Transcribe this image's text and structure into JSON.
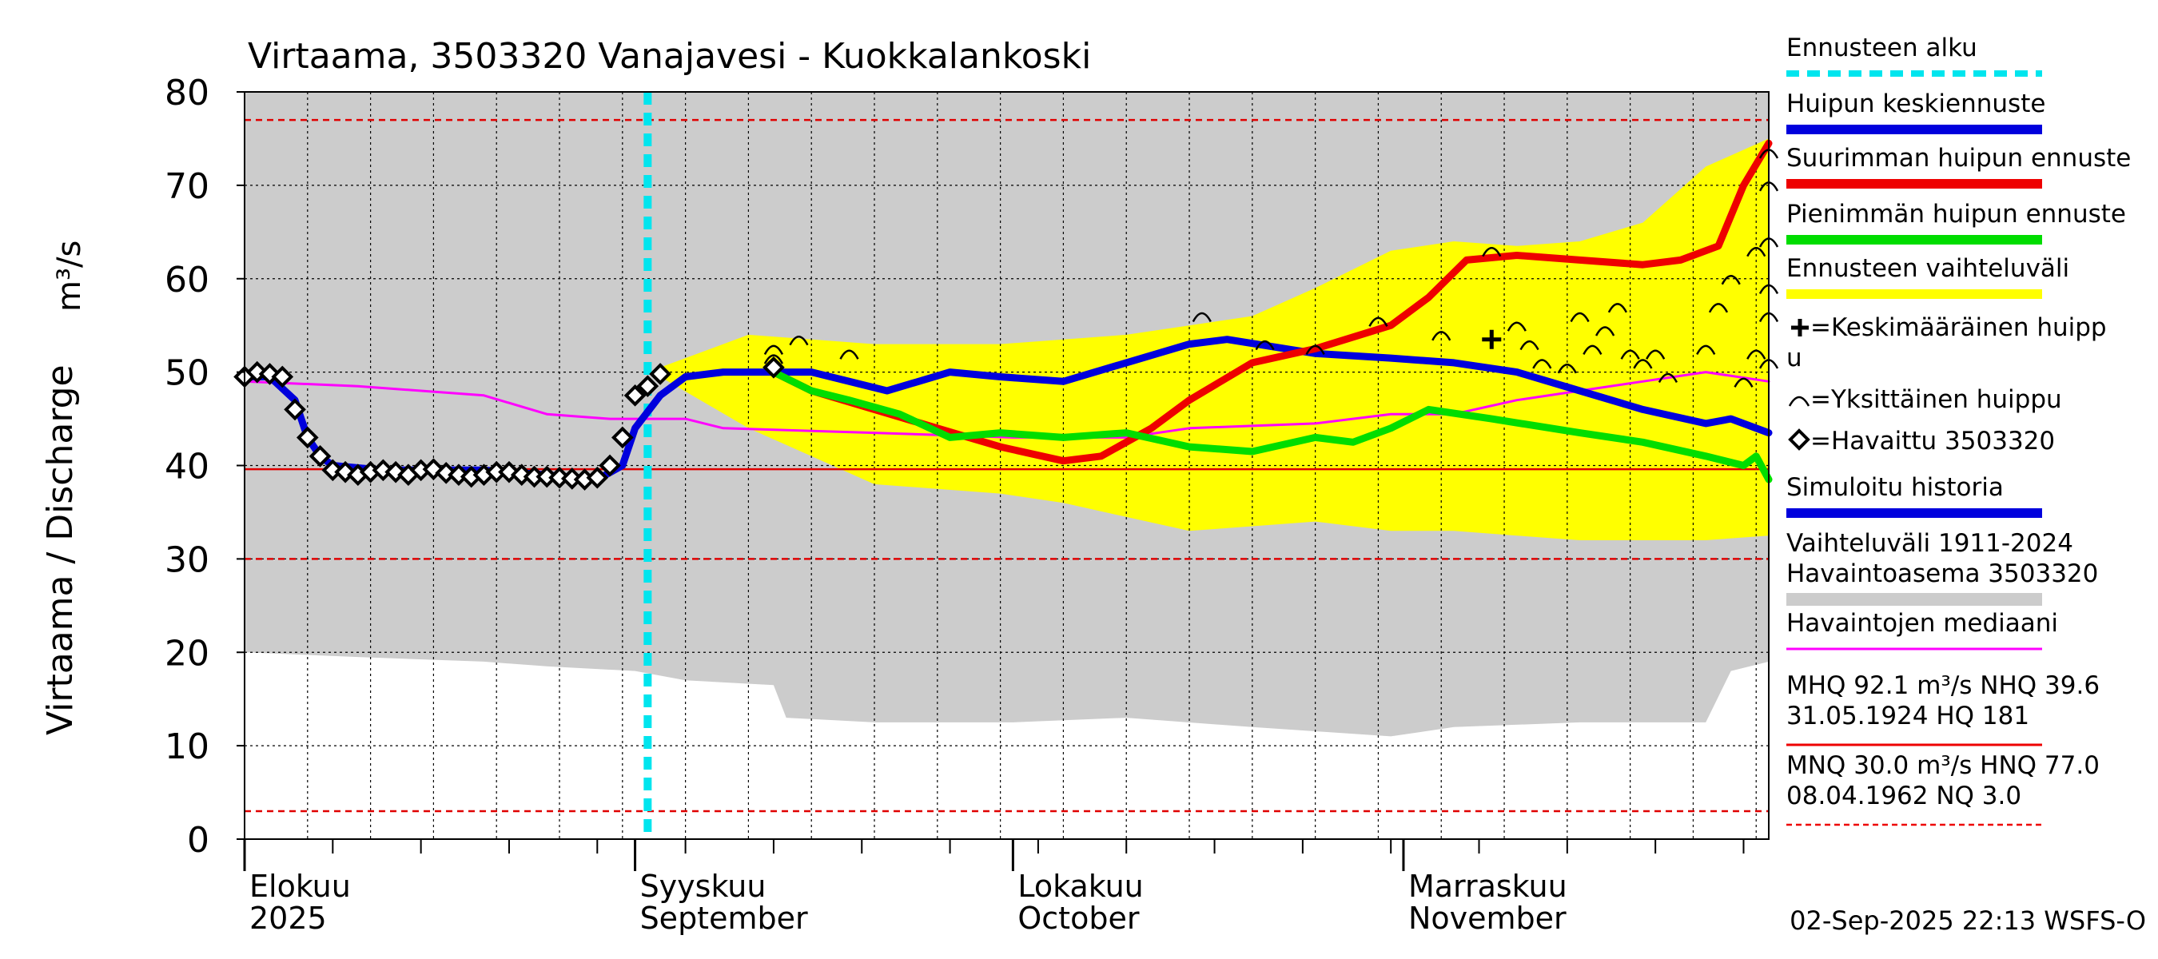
{
  "chart_data": {
    "type": "line",
    "title": "Virtaama, 3503320 Vanajavesi - Kuokkalankoski",
    "ylabel_left": "Virtaama / Discharge",
    "ylabel_unit": "m³/s",
    "ylim": [
      0,
      80
    ],
    "yticks": [
      0,
      10,
      20,
      30,
      40,
      50,
      60,
      70,
      80
    ],
    "xlim": [
      "2025-08-01",
      "2025-11-30"
    ],
    "month_labels": [
      {
        "date": "2025-08-01",
        "fi": "Elokuu",
        "en": "2025"
      },
      {
        "date": "2025-09-01",
        "fi": "Syyskuu",
        "en": "September"
      },
      {
        "date": "2025-10-01",
        "fi": "Lokakuu",
        "en": "October"
      },
      {
        "date": "2025-11-01",
        "fi": "Marraskuu",
        "en": "November"
      }
    ],
    "forecast_start": "2025-09-02",
    "reference_lines": [
      {
        "name": "HNQ",
        "value": 77.0,
        "style": "dashed",
        "color": "#e00000"
      },
      {
        "name": "NHQ",
        "value": 39.6,
        "style": "solid",
        "color": "#e00000"
      },
      {
        "name": "MNQ",
        "value": 30.0,
        "style": "dashed",
        "color": "#e00000"
      },
      {
        "name": "NQ",
        "value": 3.0,
        "style": "dashed",
        "color": "#e00000"
      }
    ],
    "historical_range": {
      "upper": 80,
      "lower": [
        [
          "2025-08-01",
          20
        ],
        [
          "2025-08-10",
          19.5
        ],
        [
          "2025-08-20",
          19
        ],
        [
          "2025-08-25",
          18.5
        ],
        [
          "2025-09-01",
          18
        ],
        [
          "2025-09-05",
          17
        ],
        [
          "2025-09-12",
          16.5
        ],
        [
          "2025-09-13",
          13
        ],
        [
          "2025-09-20",
          12.5
        ],
        [
          "2025-10-01",
          12.5
        ],
        [
          "2025-10-10",
          13
        ],
        [
          "2025-10-20",
          12
        ],
        [
          "2025-10-31",
          11
        ],
        [
          "2025-11-05",
          12
        ],
        [
          "2025-11-15",
          12.5
        ],
        [
          "2025-11-25",
          12.5
        ],
        [
          "2025-11-27",
          18
        ],
        [
          "2025-11-30",
          19
        ]
      ]
    },
    "forecast_range": {
      "upper": [
        [
          "2025-09-03",
          50.5
        ],
        [
          "2025-09-10",
          54
        ],
        [
          "2025-09-20",
          53
        ],
        [
          "2025-09-30",
          53
        ],
        [
          "2025-10-10",
          54
        ],
        [
          "2025-10-20",
          56
        ],
        [
          "2025-10-25",
          59
        ],
        [
          "2025-10-31",
          63
        ],
        [
          "2025-11-05",
          64
        ],
        [
          "2025-11-10",
          63.5
        ],
        [
          "2025-11-15",
          64
        ],
        [
          "2025-11-20",
          66
        ],
        [
          "2025-11-25",
          72
        ],
        [
          "2025-11-30",
          75
        ]
      ],
      "lower": [
        [
          "2025-09-03",
          49.5
        ],
        [
          "2025-09-10",
          44
        ],
        [
          "2025-09-15",
          41
        ],
        [
          "2025-09-20",
          38
        ],
        [
          "2025-09-25",
          37.5
        ],
        [
          "2025-09-30",
          37
        ],
        [
          "2025-10-05",
          36
        ],
        [
          "2025-10-15",
          33
        ],
        [
          "2025-10-20",
          33.5
        ],
        [
          "2025-10-25",
          34
        ],
        [
          "2025-10-31",
          33
        ],
        [
          "2025-11-05",
          33
        ],
        [
          "2025-11-10",
          32.5
        ],
        [
          "2025-11-15",
          32
        ],
        [
          "2025-11-20",
          32
        ],
        [
          "2025-11-25",
          32
        ],
        [
          "2025-11-30",
          32.5
        ]
      ]
    },
    "series": [
      {
        "name": "Havaintojen mediaani",
        "color": "#ff00ff",
        "width": 3,
        "points": [
          [
            "2025-08-01",
            49
          ],
          [
            "2025-08-10",
            48.5
          ],
          [
            "2025-08-20",
            47.5
          ],
          [
            "2025-08-25",
            45.5
          ],
          [
            "2025-08-30",
            45
          ],
          [
            "2025-09-05",
            45
          ],
          [
            "2025-09-08",
            44
          ],
          [
            "2025-09-20",
            43.5
          ],
          [
            "2025-10-01",
            43
          ],
          [
            "2025-10-10",
            43
          ],
          [
            "2025-10-15",
            44
          ],
          [
            "2025-10-25",
            44.5
          ],
          [
            "2025-10-31",
            45.5
          ],
          [
            "2025-11-05",
            45.5
          ],
          [
            "2025-11-10",
            47
          ],
          [
            "2025-11-15",
            48
          ],
          [
            "2025-11-20",
            49
          ],
          [
            "2025-11-25",
            50
          ],
          [
            "2025-11-30",
            49
          ]
        ]
      },
      {
        "name": "Simuloitu historia",
        "color": "#0000dd",
        "width": 9,
        "points": [
          [
            "2025-08-01",
            49.5
          ],
          [
            "2025-08-03",
            49.5
          ],
          [
            "2025-08-05",
            47
          ],
          [
            "2025-08-06",
            43
          ],
          [
            "2025-08-07",
            41
          ],
          [
            "2025-08-08",
            40
          ],
          [
            "2025-08-12",
            39.5
          ],
          [
            "2025-08-20",
            39.5
          ],
          [
            "2025-08-25",
            39
          ],
          [
            "2025-08-29",
            38.5
          ],
          [
            "2025-08-31",
            40
          ],
          [
            "2025-09-01",
            44
          ],
          [
            "2025-09-03",
            47.5
          ],
          [
            "2025-09-05",
            49.5
          ],
          [
            "2025-09-08",
            50
          ],
          [
            "2025-09-12",
            50
          ]
        ]
      },
      {
        "name": "Huipun keskiennuste",
        "color": "#0000dd",
        "width": 9,
        "points": [
          [
            "2025-09-12",
            50
          ],
          [
            "2025-09-15",
            50
          ],
          [
            "2025-09-18",
            49
          ],
          [
            "2025-09-21",
            48
          ],
          [
            "2025-09-26",
            50
          ],
          [
            "2025-09-30",
            49.5
          ],
          [
            "2025-10-05",
            49
          ],
          [
            "2025-10-10",
            51
          ],
          [
            "2025-10-15",
            53
          ],
          [
            "2025-10-18",
            53.5
          ],
          [
            "2025-10-25",
            52
          ],
          [
            "2025-10-31",
            51.5
          ],
          [
            "2025-11-05",
            51
          ],
          [
            "2025-11-10",
            50
          ],
          [
            "2025-11-15",
            48
          ],
          [
            "2025-11-20",
            46
          ],
          [
            "2025-11-25",
            44.5
          ],
          [
            "2025-11-27",
            45
          ],
          [
            "2025-11-30",
            43.5
          ]
        ]
      },
      {
        "name": "Suurimman huipun ennuste",
        "color": "#ee0000",
        "width": 9,
        "points": [
          [
            "2025-09-12",
            50
          ],
          [
            "2025-09-15",
            48
          ],
          [
            "2025-09-20",
            46
          ],
          [
            "2025-09-25",
            44
          ],
          [
            "2025-09-30",
            42
          ],
          [
            "2025-10-05",
            40.5
          ],
          [
            "2025-10-08",
            41
          ],
          [
            "2025-10-12",
            44
          ],
          [
            "2025-10-15",
            47
          ],
          [
            "2025-10-20",
            51
          ],
          [
            "2025-10-25",
            52.5
          ],
          [
            "2025-10-31",
            55
          ],
          [
            "2025-11-03",
            58
          ],
          [
            "2025-11-06",
            62
          ],
          [
            "2025-11-10",
            62.5
          ],
          [
            "2025-11-15",
            62
          ],
          [
            "2025-11-20",
            61.5
          ],
          [
            "2025-11-23",
            62
          ],
          [
            "2025-11-26",
            63.5
          ],
          [
            "2025-11-28",
            70
          ],
          [
            "2025-11-30",
            74.5
          ]
        ]
      },
      {
        "name": "Pienimmän huipun ennuste",
        "color": "#00dd00",
        "width": 9,
        "points": [
          [
            "2025-09-12",
            50
          ],
          [
            "2025-09-15",
            48
          ],
          [
            "2025-09-18",
            47
          ],
          [
            "2025-09-22",
            45.5
          ],
          [
            "2025-09-26",
            43
          ],
          [
            "2025-09-30",
            43.5
          ],
          [
            "2025-10-05",
            43
          ],
          [
            "2025-10-10",
            43.5
          ],
          [
            "2025-10-15",
            42
          ],
          [
            "2025-10-20",
            41.5
          ],
          [
            "2025-10-25",
            43
          ],
          [
            "2025-10-28",
            42.5
          ],
          [
            "2025-10-31",
            44
          ],
          [
            "2025-11-03",
            46
          ],
          [
            "2025-11-08",
            45
          ],
          [
            "2025-11-15",
            43.5
          ],
          [
            "2025-11-20",
            42.5
          ],
          [
            "2025-11-25",
            41
          ],
          [
            "2025-11-28",
            40
          ],
          [
            "2025-11-29",
            41
          ],
          [
            "2025-11-30",
            38.5
          ]
        ]
      }
    ],
    "observed": {
      "name": "Havaittu 3503320",
      "points": [
        [
          "2025-08-01",
          49.5
        ],
        [
          "2025-08-02",
          50
        ],
        [
          "2025-08-03",
          49.8
        ],
        [
          "2025-08-04",
          49.5
        ],
        [
          "2025-08-05",
          46
        ],
        [
          "2025-08-06",
          43
        ],
        [
          "2025-08-07",
          41
        ],
        [
          "2025-08-08",
          39.5
        ],
        [
          "2025-08-09",
          39.3
        ],
        [
          "2025-08-10",
          39
        ],
        [
          "2025-08-11",
          39.3
        ],
        [
          "2025-08-12",
          39.5
        ],
        [
          "2025-08-13",
          39.3
        ],
        [
          "2025-08-14",
          39
        ],
        [
          "2025-08-15",
          39.5
        ],
        [
          "2025-08-16",
          39.6
        ],
        [
          "2025-08-17",
          39.2
        ],
        [
          "2025-08-18",
          39
        ],
        [
          "2025-08-19",
          38.8
        ],
        [
          "2025-08-20",
          39
        ],
        [
          "2025-08-21",
          39.3
        ],
        [
          "2025-08-22",
          39.3
        ],
        [
          "2025-08-23",
          39
        ],
        [
          "2025-08-24",
          38.8
        ],
        [
          "2025-08-25",
          38.8
        ],
        [
          "2025-08-26",
          38.7
        ],
        [
          "2025-08-27",
          38.6
        ],
        [
          "2025-08-28",
          38.5
        ],
        [
          "2025-08-29",
          38.7
        ],
        [
          "2025-08-30",
          40
        ],
        [
          "2025-08-31",
          43
        ],
        [
          "2025-09-01",
          47.5
        ],
        [
          "2025-09-02",
          48.5
        ],
        [
          "2025-09-03",
          49.8
        ],
        [
          "2025-09-12",
          50.5
        ]
      ]
    },
    "individual_peaks": [
      [
        "2025-09-12",
        52.5
      ],
      [
        "2025-09-12",
        51.5
      ],
      [
        "2025-09-12",
        51
      ],
      [
        "2025-09-14",
        53.5
      ],
      [
        "2025-09-18",
        52
      ],
      [
        "2025-10-16",
        56
      ],
      [
        "2025-10-21",
        53
      ],
      [
        "2025-10-25",
        52.5
      ],
      [
        "2025-10-30",
        55.5
      ],
      [
        "2025-11-04",
        54
      ],
      [
        "2025-11-08",
        63
      ],
      [
        "2025-11-10",
        55
      ],
      [
        "2025-11-11",
        53
      ],
      [
        "2025-11-12",
        51
      ],
      [
        "2025-11-14",
        50.5
      ],
      [
        "2025-11-15",
        56
      ],
      [
        "2025-11-16",
        52.5
      ],
      [
        "2025-11-17",
        54.5
      ],
      [
        "2025-11-18",
        57
      ],
      [
        "2025-11-19",
        52
      ],
      [
        "2025-11-20",
        51
      ],
      [
        "2025-11-21",
        52
      ],
      [
        "2025-11-22",
        49.5
      ],
      [
        "2025-11-25",
        52.5
      ],
      [
        "2025-11-26",
        57
      ],
      [
        "2025-11-27",
        60
      ],
      [
        "2025-11-28",
        49
      ],
      [
        "2025-11-29",
        52
      ],
      [
        "2025-11-29",
        63
      ],
      [
        "2025-11-30",
        51
      ],
      [
        "2025-11-30",
        56
      ],
      [
        "2025-11-30",
        59
      ],
      [
        "2025-11-30",
        64
      ],
      [
        "2025-11-30",
        70
      ],
      [
        "2025-11-30",
        73.5
      ]
    ],
    "mean_peak": [
      "2025-11-08",
      53.5
    ],
    "legend": [
      {
        "label": "Ennusteen alku",
        "kind": "dashed-cyan",
        "color": "#00e5ee"
      },
      {
        "label": "Huipun keskiennuste",
        "kind": "line",
        "color": "#0000dd"
      },
      {
        "label": "Suurimman huipun ennuste",
        "kind": "line",
        "color": "#ee0000"
      },
      {
        "label": "Pienimmän huipun ennuste",
        "kind": "line",
        "color": "#00dd00"
      },
      {
        "label": "Ennusteen vaihteluväli",
        "kind": "line",
        "color": "#ffff00"
      },
      {
        "label": "=Keskimääräinen huipp",
        "label2": "u",
        "kind": "plus"
      },
      {
        "label": "=Yksittäinen huippu",
        "kind": "arc"
      },
      {
        "label": "=Havaittu 3503320",
        "kind": "diamond"
      },
      {
        "label": "Simuloitu historia",
        "kind": "line",
        "color": "#0000dd"
      },
      {
        "label": "Vaihteluväli 1911-2024",
        "label2": " Havaintoasema 3503320",
        "kind": "line",
        "color": "#cccccc"
      },
      {
        "label": "Havaintojen mediaani",
        "kind": "thin",
        "color": "#ff00ff"
      },
      {
        "label": "MHQ 92.1 m³/s NHQ 39.6",
        "label2": "31.05.1924 HQ  181",
        "kind": "thin",
        "color": "#ee0000"
      },
      {
        "label": "MNQ 30.0 m³/s HNQ 77.0",
        "label2": "08.04.1962 NQ  3.0",
        "kind": "dashed-red",
        "color": "#ee0000"
      }
    ],
    "footer": "02-Sep-2025 22:13 WSFS-O"
  }
}
